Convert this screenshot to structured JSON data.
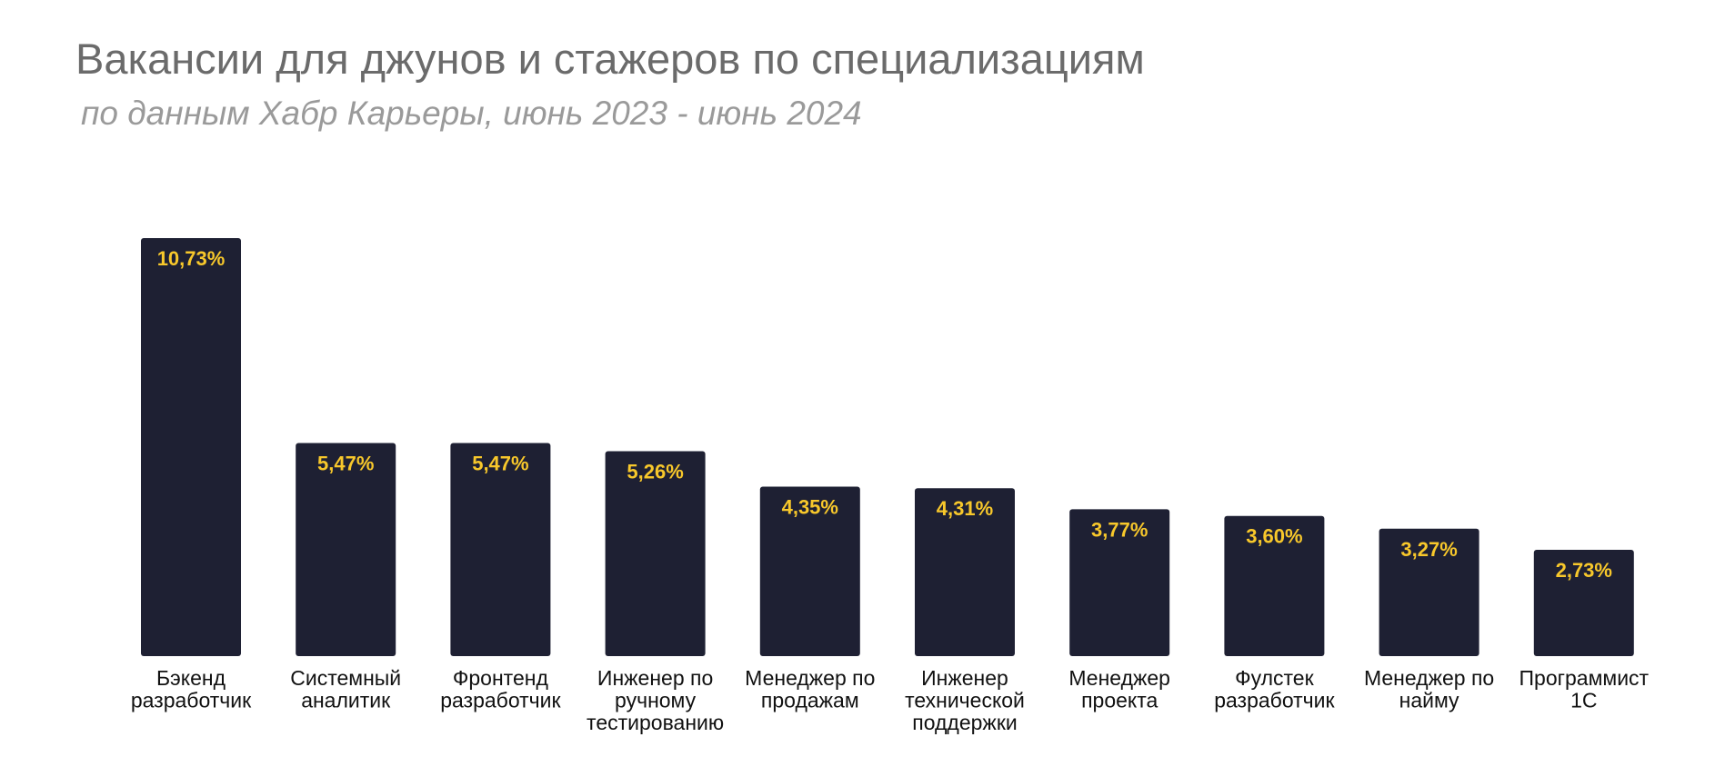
{
  "chart_data": {
    "type": "bar",
    "title": "Вакансии для джунов и стажеров по специализациям",
    "subtitle": "по данным Хабр Карьеры, июнь 2023 - июнь 2024",
    "xlabel": "",
    "ylabel": "",
    "ylim": [
      0,
      10.73
    ],
    "unit": "%",
    "categories": [
      [
        "Бэкенд",
        "разработчик"
      ],
      [
        "Системный",
        "аналитик"
      ],
      [
        "Фронтенд",
        "разработчик"
      ],
      [
        "Инженер по",
        "ручному",
        "тестированию"
      ],
      [
        "Менеджер по",
        "продажам"
      ],
      [
        "Инженер",
        "технической",
        "поддержки"
      ],
      [
        "Менеджер",
        "проекта"
      ],
      [
        "Фулстек",
        "разработчик"
      ],
      [
        "Менеджер по",
        "найму"
      ],
      [
        "Программист",
        "1С"
      ]
    ],
    "values": [
      10.73,
      5.47,
      5.47,
      5.26,
      4.35,
      4.31,
      3.77,
      3.6,
      3.27,
      2.73
    ],
    "value_labels": [
      "10,73%",
      "5,47%",
      "5,47%",
      "5,26%",
      "4,35%",
      "4,31%",
      "3,77%",
      "3,60%",
      "3,27%",
      "2,73%"
    ],
    "colors": {
      "bar": "#1e2033",
      "value_text": "#f8c82b",
      "title_text": "#6b6b6b",
      "subtitle_text": "#9a9a9a"
    }
  }
}
